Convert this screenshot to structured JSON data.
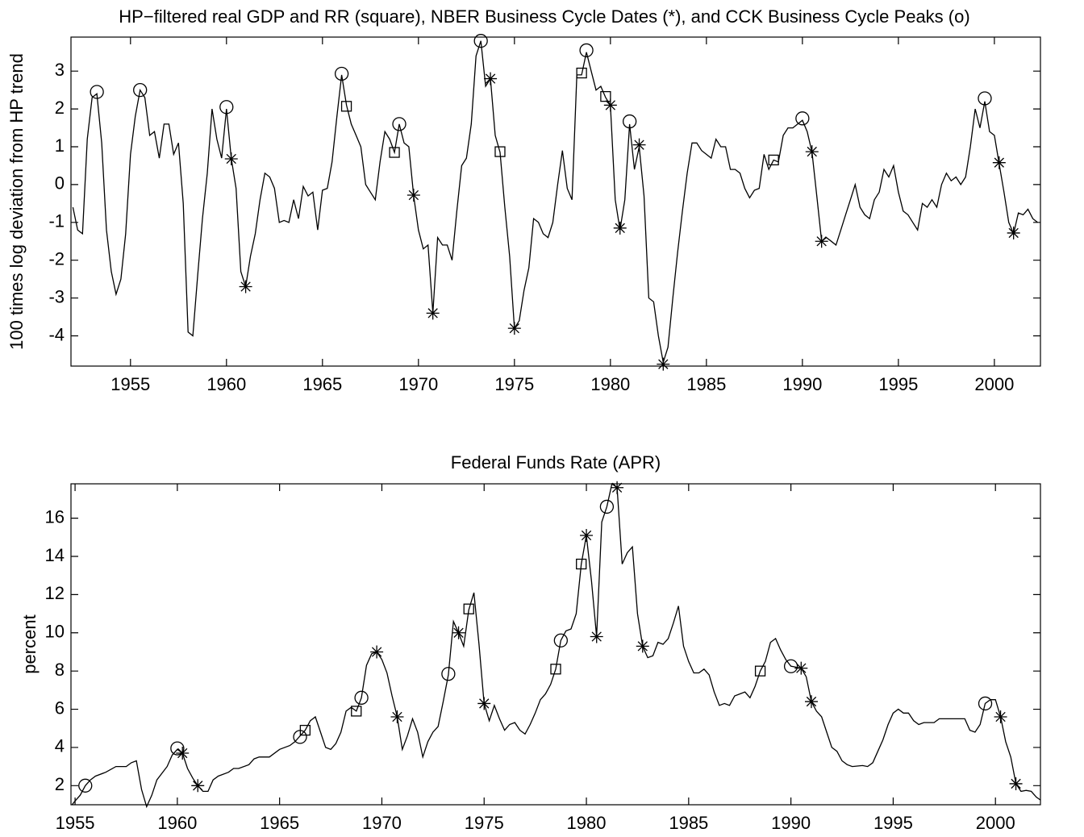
{
  "chart_data": [
    {
      "type": "line",
      "title": "HP−filtered real GDP and RR (square), NBER Business Cycle Dates (*), and CCK Business Cycle Peaks (o)",
      "ylabel": "100 times log deviation from HP trend",
      "xlim": [
        1951.9,
        2002.4
      ],
      "ylim": [
        -4.8,
        3.9
      ],
      "xticks": [
        1955,
        1960,
        1965,
        1970,
        1975,
        1980,
        1985,
        1990,
        1995,
        2000
      ],
      "yticks": [
        -4,
        -3,
        -2,
        -1,
        0,
        1,
        2,
        3
      ],
      "series": [
        {
          "marker": "none",
          "color": "#000000",
          "x": [
            1952,
            1952.25,
            1952.5,
            1952.75,
            1953,
            1953.25,
            1953.5,
            1953.75,
            1954,
            1954.25,
            1954.5,
            1954.75,
            1955,
            1955.25,
            1955.5,
            1955.75,
            1956,
            1956.25,
            1956.5,
            1956.75,
            1957,
            1957.25,
            1957.5,
            1957.75,
            1958,
            1958.25,
            1958.5,
            1958.75,
            1959,
            1959.25,
            1959.5,
            1959.75,
            1960,
            1960.25,
            1960.5,
            1960.75,
            1961,
            1961.25,
            1961.5,
            1961.75,
            1962,
            1962.25,
            1962.5,
            1962.75,
            1963,
            1963.25,
            1963.5,
            1963.75,
            1964,
            1964.25,
            1964.5,
            1964.75,
            1965,
            1965.25,
            1965.5,
            1965.75,
            1966,
            1966.25,
            1966.5,
            1966.75,
            1967,
            1967.25,
            1967.5,
            1967.75,
            1968,
            1968.25,
            1968.5,
            1968.75,
            1969,
            1969.25,
            1969.5,
            1969.75,
            1970,
            1970.25,
            1970.5,
            1970.75,
            1971,
            1971.25,
            1971.5,
            1971.75,
            1972,
            1972.25,
            1972.5,
            1972.75,
            1973,
            1973.25,
            1973.5,
            1973.75,
            1974,
            1974.25,
            1974.5,
            1974.75,
            1975,
            1975.25,
            1975.5,
            1975.75,
            1976,
            1976.25,
            1976.5,
            1976.75,
            1977,
            1977.25,
            1977.5,
            1977.75,
            1978,
            1978.25,
            1978.5,
            1978.75,
            1979,
            1979.25,
            1979.5,
            1979.75,
            1980,
            1980.25,
            1980.5,
            1980.75,
            1981,
            1981.25,
            1981.5,
            1981.75,
            1982,
            1982.25,
            1982.5,
            1982.75,
            1983,
            1983.25,
            1983.5,
            1983.75,
            1984,
            1984.25,
            1984.5,
            1984.75,
            1985,
            1985.25,
            1985.5,
            1985.75,
            1986,
            1986.25,
            1986.5,
            1986.75,
            1987,
            1987.25,
            1987.5,
            1987.75,
            1988,
            1988.25,
            1988.5,
            1988.75,
            1989,
            1989.25,
            1989.5,
            1989.75,
            1990,
            1990.25,
            1990.5,
            1990.75,
            1991,
            1991.25,
            1991.5,
            1991.75,
            1992,
            1992.25,
            1992.5,
            1992.75,
            1993,
            1993.25,
            1993.5,
            1993.75,
            1994,
            1994.25,
            1994.5,
            1994.75,
            1995,
            1995.25,
            1995.5,
            1995.75,
            1996,
            1996.25,
            1996.5,
            1996.75,
            1997,
            1997.25,
            1997.5,
            1997.75,
            1998,
            1998.25,
            1998.5,
            1998.75,
            1999,
            1999.25,
            1999.5,
            1999.75,
            2000,
            2000.25,
            2000.5,
            2000.75,
            2001,
            2001.25,
            2001.5,
            2001.75,
            2002,
            2002.25
          ],
          "values": [
            -0.6,
            -1.2,
            -1.3,
            1.2,
            2.3,
            2.4,
            1.1,
            -1.2,
            -2.3,
            -2.9,
            -2.5,
            -1.3,
            0.8,
            1.8,
            2.5,
            2.3,
            1.3,
            1.4,
            0.7,
            1.6,
            1.6,
            0.8,
            1.1,
            -0.5,
            -3.9,
            -4.0,
            -2.4,
            -0.9,
            0.3,
            2.0,
            1.2,
            0.7,
            2.0,
            0.7,
            -0.1,
            -2.3,
            -2.7,
            -1.9,
            -1.3,
            -0.4,
            0.3,
            0.2,
            -0.1,
            -1.0,
            -0.95,
            -1.0,
            -0.4,
            -0.9,
            -0.05,
            -0.3,
            -0.2,
            -1.2,
            -0.15,
            -0.1,
            0.6,
            1.8,
            2.9,
            2.1,
            1.6,
            1.3,
            1.0,
            0.0,
            -0.2,
            -0.4,
            0.6,
            1.4,
            1.2,
            0.85,
            1.6,
            1.1,
            1.0,
            -0.3,
            -1.2,
            -1.7,
            -1.6,
            -3.4,
            -1.4,
            -1.6,
            -1.6,
            -2.0,
            -0.7,
            0.5,
            0.7,
            1.6,
            3.4,
            3.8,
            2.6,
            2.8,
            1.3,
            0.85,
            -0.6,
            -1.9,
            -3.8,
            -3.6,
            -2.8,
            -2.2,
            -0.9,
            -1.0,
            -1.3,
            -1.4,
            -1.0,
            0.0,
            0.9,
            -0.1,
            -0.4,
            2.9,
            2.9,
            3.5,
            3.0,
            2.5,
            2.6,
            2.3,
            2.1,
            -0.4,
            -1.2,
            -0.4,
            1.6,
            0.4,
            1.0,
            -0.3,
            -3.0,
            -3.1,
            -4.0,
            -4.7,
            -4.3,
            -3.0,
            -1.8,
            -0.7,
            0.3,
            1.1,
            1.1,
            0.9,
            0.8,
            0.7,
            1.2,
            1.0,
            1.0,
            0.4,
            0.4,
            0.3,
            -0.1,
            -0.35,
            -0.15,
            -0.1,
            0.8,
            0.4,
            0.65,
            0.6,
            1.3,
            1.5,
            1.5,
            1.6,
            1.7,
            1.4,
            0.85,
            -0.3,
            -1.5,
            -1.4,
            -1.5,
            -1.6,
            -1.2,
            -0.8,
            -0.4,
            0.0,
            -0.6,
            -0.8,
            -0.9,
            -0.4,
            -0.2,
            0.4,
            0.2,
            0.5,
            -0.2,
            -0.7,
            -0.8,
            -1.0,
            -1.2,
            -0.5,
            -0.6,
            -0.4,
            -0.6,
            0.0,
            0.3,
            0.1,
            0.2,
            0.0,
            0.2,
            1.0,
            2.0,
            1.5,
            2.2,
            1.4,
            1.3,
            0.55,
            -0.2,
            -1.0,
            -1.3,
            -0.75,
            -0.8,
            -0.65,
            -0.9,
            -1.0
          ]
        },
        {
          "marker": "circle",
          "color": "#000000",
          "x": [
            1953.25,
            1955.5,
            1960,
            1966,
            1969,
            1973.25,
            1978.75,
            1981,
            1990,
            1999.5
          ],
          "values": [
            2.45,
            2.5,
            2.05,
            2.93,
            1.6,
            3.8,
            3.55,
            1.67,
            1.75,
            2.28
          ]
        },
        {
          "marker": "square",
          "color": "#000000",
          "x": [
            1966.25,
            1968.75,
            1974.25,
            1978.5,
            1979.75,
            1988.5
          ],
          "values": [
            2.07,
            0.85,
            0.87,
            2.95,
            2.33,
            0.65
          ]
        },
        {
          "marker": "star",
          "color": "#000000",
          "x": [
            1960.25,
            1961,
            1969.75,
            1970.75,
            1973.75,
            1975,
            1980,
            1980.5,
            1981.5,
            1982.75,
            1990.5,
            1991,
            2000.25,
            2001
          ],
          "values": [
            0.68,
            -2.7,
            -0.28,
            -3.4,
            2.8,
            -3.8,
            2.1,
            -1.15,
            1.05,
            -4.75,
            0.87,
            -1.5,
            0.58,
            -1.28
          ]
        }
      ]
    },
    {
      "type": "line",
      "title": "Federal Funds Rate (APR)",
      "ylabel": "percent",
      "xlim": [
        1954.8,
        2002.2
      ],
      "ylim": [
        1.0,
        17.8
      ],
      "xticks": [
        1955,
        1960,
        1965,
        1970,
        1975,
        1980,
        1985,
        1990,
        1995,
        2000
      ],
      "yticks": [
        2,
        4,
        6,
        8,
        10,
        12,
        14,
        16
      ],
      "series": [
        {
          "marker": "none",
          "color": "#000000",
          "x": [
            1954.85,
            1955,
            1955.25,
            1955.5,
            1955.75,
            1956,
            1956.5,
            1957,
            1957.5,
            1957.75,
            1958,
            1958.25,
            1958.5,
            1958.75,
            1959,
            1959.5,
            1959.75,
            1960,
            1960.25,
            1960.5,
            1960.75,
            1961,
            1961.25,
            1961.5,
            1961.75,
            1962,
            1962.5,
            1962.75,
            1963,
            1963.5,
            1963.75,
            1964,
            1964.5,
            1965,
            1965.5,
            1965.75,
            1966,
            1966.25,
            1966.5,
            1966.75,
            1967,
            1967.25,
            1967.5,
            1967.75,
            1968,
            1968.25,
            1968.5,
            1968.75,
            1969,
            1969.25,
            1969.5,
            1969.75,
            1970,
            1970.25,
            1970.5,
            1970.75,
            1971,
            1971.25,
            1971.5,
            1971.75,
            1972,
            1972.25,
            1972.5,
            1972.75,
            1973,
            1973.25,
            1973.5,
            1973.75,
            1974,
            1974.25,
            1974.5,
            1974.75,
            1975,
            1975.25,
            1975.5,
            1975.75,
            1976,
            1976.25,
            1976.5,
            1976.75,
            1977,
            1977.25,
            1977.5,
            1977.75,
            1978,
            1978.25,
            1978.5,
            1978.75,
            1979,
            1979.25,
            1979.5,
            1979.75,
            1980,
            1980.25,
            1980.5,
            1980.75,
            1981,
            1981.25,
            1981.5,
            1981.75,
            1982,
            1982.25,
            1982.5,
            1982.75,
            1983,
            1983.25,
            1983.5,
            1983.75,
            1984,
            1984.25,
            1984.5,
            1984.75,
            1985,
            1985.25,
            1985.5,
            1985.75,
            1986,
            1986.25,
            1986.5,
            1986.75,
            1987,
            1987.25,
            1987.5,
            1987.75,
            1988,
            1988.25,
            1988.5,
            1988.75,
            1989,
            1989.25,
            1989.5,
            1989.75,
            1990,
            1990.25,
            1990.5,
            1990.75,
            1991,
            1991.25,
            1991.5,
            1991.75,
            1992,
            1992.25,
            1992.5,
            1992.75,
            1993,
            1993.5,
            1993.75,
            1994,
            1994.25,
            1994.5,
            1994.75,
            1995,
            1995.25,
            1995.5,
            1995.75,
            1996,
            1996.25,
            1996.5,
            1996.75,
            1997,
            1997.25,
            1997.5,
            1997.75,
            1998,
            1998.25,
            1998.5,
            1998.75,
            1999,
            1999.25,
            1999.5,
            1999.75,
            2000,
            2000.25,
            2000.5,
            2000.75,
            2001,
            2001.25,
            2001.5,
            2001.75,
            2002,
            2002.2
          ],
          "values": [
            1.0,
            1.2,
            1.5,
            2.0,
            2.3,
            2.5,
            2.7,
            3.0,
            3.0,
            3.2,
            3.3,
            1.8,
            0.9,
            1.5,
            2.3,
            3.0,
            3.6,
            3.9,
            3.7,
            2.9,
            2.4,
            2.0,
            1.7,
            1.7,
            2.3,
            2.5,
            2.7,
            2.9,
            2.9,
            3.1,
            3.4,
            3.5,
            3.5,
            3.9,
            4.1,
            4.3,
            4.6,
            4.9,
            5.4,
            5.6,
            4.8,
            4.0,
            3.9,
            4.2,
            4.8,
            5.9,
            6.1,
            5.9,
            6.6,
            8.3,
            8.9,
            9.0,
            8.6,
            7.9,
            6.7,
            5.6,
            3.9,
            4.6,
            5.5,
            4.8,
            3.5,
            4.3,
            4.8,
            5.1,
            6.4,
            7.8,
            10.6,
            10.0,
            9.3,
            11.2,
            12.1,
            9.4,
            6.3,
            5.4,
            6.2,
            5.5,
            4.9,
            5.2,
            5.3,
            4.9,
            4.7,
            5.2,
            5.8,
            6.5,
            6.8,
            7.3,
            8.1,
            9.6,
            10.1,
            10.2,
            11.0,
            13.6,
            15.1,
            12.7,
            9.8,
            15.8,
            16.6,
            17.8,
            17.6,
            13.6,
            14.2,
            14.5,
            11.0,
            9.3,
            8.7,
            8.8,
            9.5,
            9.4,
            9.7,
            10.5,
            11.4,
            9.3,
            8.5,
            7.9,
            7.9,
            8.1,
            7.8,
            6.9,
            6.2,
            6.3,
            6.2,
            6.7,
            6.8,
            6.9,
            6.6,
            7.2,
            8.0,
            8.5,
            9.5,
            9.7,
            9.1,
            8.6,
            8.25,
            8.2,
            8.15,
            7.7,
            6.4,
            5.9,
            5.6,
            4.8,
            4.0,
            3.8,
            3.3,
            3.1,
            3.0,
            3.05,
            3.0,
            3.2,
            3.8,
            4.4,
            5.2,
            5.8,
            6.0,
            5.8,
            5.8,
            5.4,
            5.2,
            5.3,
            5.3,
            5.3,
            5.5,
            5.5,
            5.5,
            5.5,
            5.5,
            5.5,
            4.9,
            4.8,
            5.2,
            6.3,
            6.5,
            6.5,
            5.6,
            4.3,
            3.5,
            2.1,
            1.7,
            1.75,
            1.7,
            1.4,
            1.25
          ]
        },
        {
          "marker": "circle",
          "color": "#000000",
          "x": [
            1955.5,
            1960,
            1966,
            1969,
            1973.25,
            1978.75,
            1981,
            1990,
            1999.5
          ],
          "values": [
            2.0,
            3.95,
            4.55,
            6.6,
            7.85,
            9.6,
            16.6,
            8.25,
            6.3
          ]
        },
        {
          "marker": "square",
          "color": "#000000",
          "x": [
            1966.25,
            1968.75,
            1974.25,
            1978.5,
            1979.75,
            1988.5
          ],
          "values": [
            4.9,
            5.9,
            11.25,
            8.1,
            13.6,
            8.0
          ]
        },
        {
          "marker": "star",
          "color": "#000000",
          "x": [
            1960.25,
            1961,
            1969.75,
            1970.75,
            1973.75,
            1975,
            1980,
            1980.5,
            1981.5,
            1982.75,
            1990.5,
            1991,
            2000.25,
            2001
          ],
          "values": [
            3.7,
            2.0,
            9.0,
            5.6,
            10.0,
            6.3,
            15.1,
            9.8,
            17.6,
            9.3,
            8.15,
            6.4,
            5.6,
            2.1
          ]
        }
      ]
    }
  ]
}
